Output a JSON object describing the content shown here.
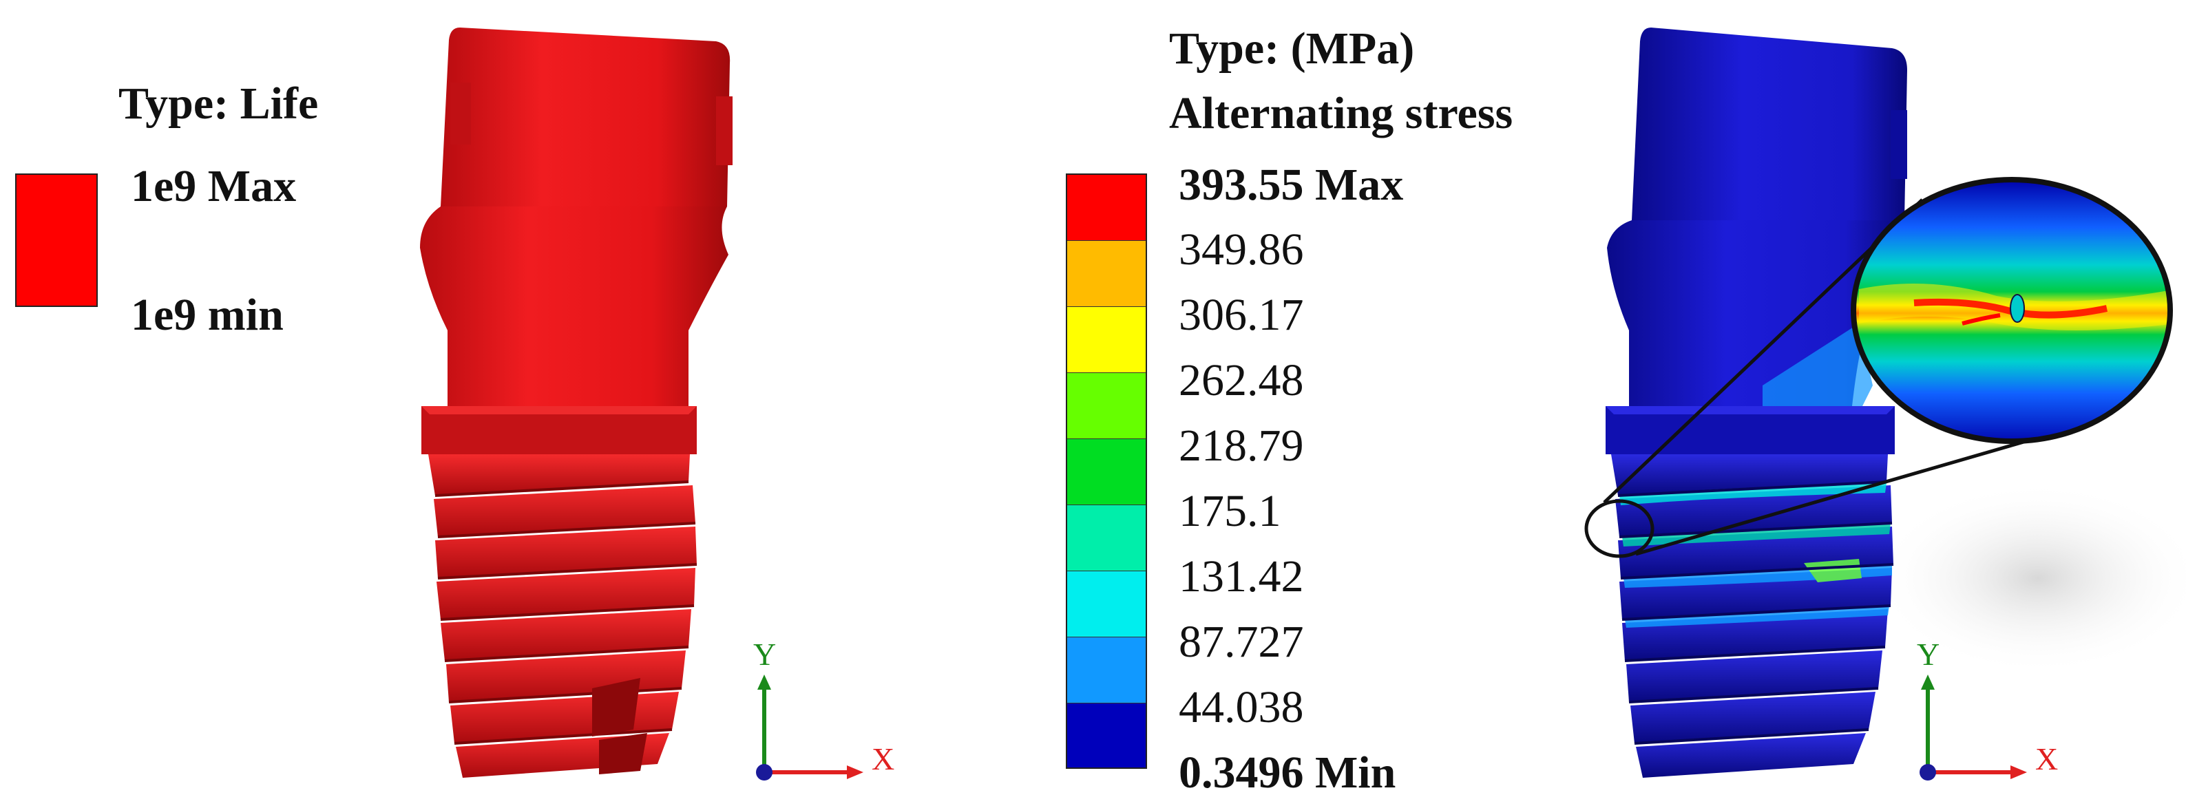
{
  "left_panel": {
    "type_label": "Type: Life",
    "legend": {
      "color": "#ff0000",
      "max_label": "1e9 Max",
      "min_label": "1e9 min"
    },
    "model_color": "#e8181c",
    "axis": {
      "x_label": "X",
      "y_label": "Y"
    }
  },
  "right_panel": {
    "type_label": "Type: (MPa)",
    "quantity_label": "Alternating stress",
    "max_label": "393.55 Max",
    "min_label": "0.3496 Min",
    "legend_values": [
      "349.86",
      "306.17",
      "262.48",
      "218.79",
      "175.1",
      "131.42",
      "87.727",
      "44.038"
    ],
    "legend_colors": [
      "#ff0000",
      "#ffbb00",
      "#ffff00",
      "#66ff00",
      "#00dd22",
      "#00eeaa",
      "#00eeee",
      "#1199ff",
      "#0000bb"
    ],
    "model_color": "#1a1acc",
    "axis": {
      "x_label": "X",
      "y_label": "Y"
    }
  },
  "axis_colors": {
    "x": "#e02020",
    "y": "#1a8a1a",
    "origin": "#1a1a99"
  }
}
